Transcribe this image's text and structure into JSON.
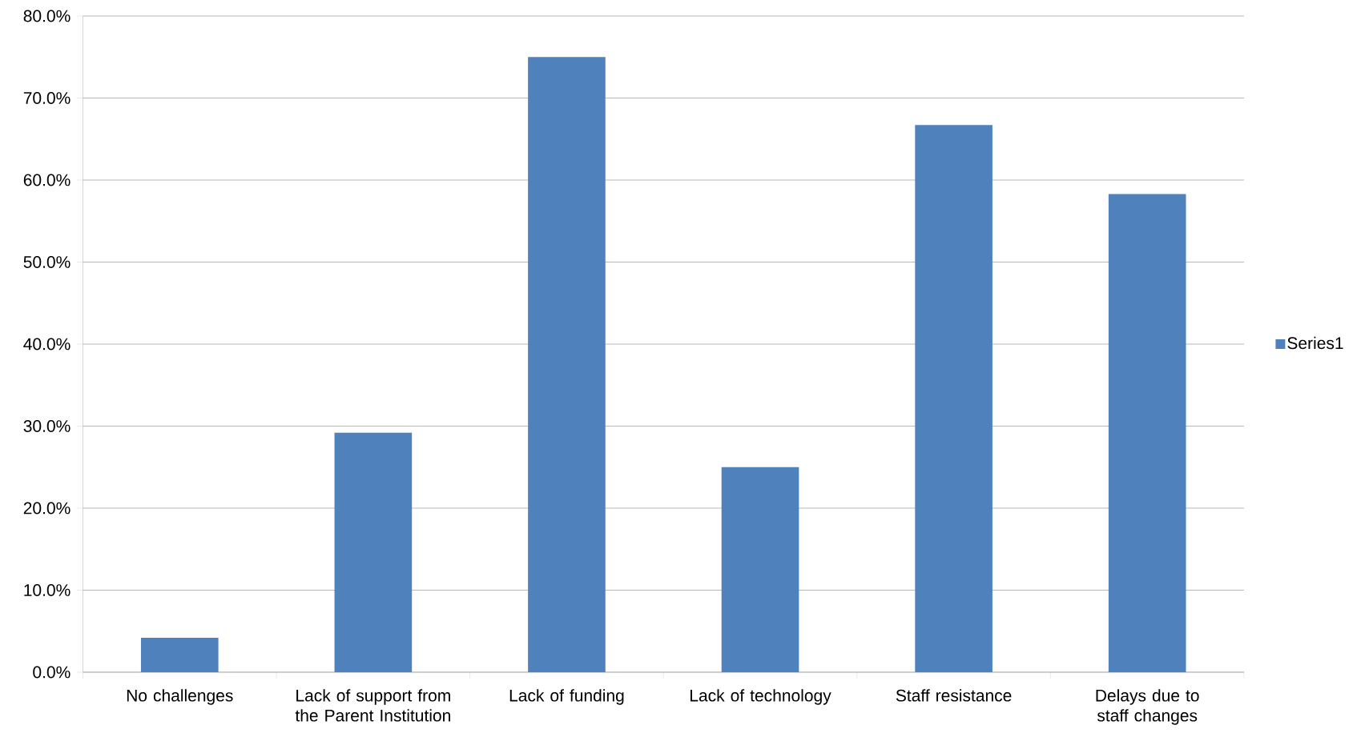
{
  "chart_data": {
    "type": "bar",
    "categories": [
      "No challenges",
      "Lack of support from the Parent Institution",
      "Lack of funding",
      "Lack of technology",
      "Staff resistance",
      "Delays due to staff changes"
    ],
    "series": [
      {
        "name": "Series1",
        "color": "#4f81bd",
        "values": [
          4.2,
          29.2,
          75.0,
          25.0,
          66.7,
          58.3
        ]
      }
    ],
    "ylim": [
      0,
      80
    ],
    "yticks": [
      {
        "value": 0,
        "label": "0.0%"
      },
      {
        "value": 10,
        "label": "10.0%"
      },
      {
        "value": 20,
        "label": "20.0%"
      },
      {
        "value": 30,
        "label": "30.0%"
      },
      {
        "value": 40,
        "label": "40.0%"
      },
      {
        "value": 50,
        "label": "50.0%"
      },
      {
        "value": 60,
        "label": "60.0%"
      },
      {
        "value": 70,
        "label": "70.0%"
      },
      {
        "value": 80,
        "label": "80.0%"
      }
    ],
    "grid": "y",
    "legend": "right"
  }
}
